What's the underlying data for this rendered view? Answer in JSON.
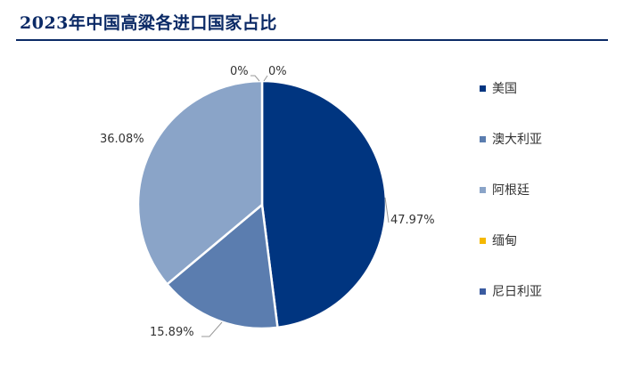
{
  "header": {
    "title": "2023年中国高粱各进口国家占比"
  },
  "chart_data": {
    "type": "pie",
    "title": "2023年中国高粱各进口国家占比",
    "slices": [
      {
        "name": "美国",
        "value": 47.97,
        "label": "47.97%",
        "color": "#003580"
      },
      {
        "name": "澳大利亚",
        "value": 15.89,
        "label": "15.89%",
        "color": "#5b7daf"
      },
      {
        "name": "阿根廷",
        "value": 36.08,
        "label": "36.08%",
        "color": "#8aa4c8"
      },
      {
        "name": "缅甸",
        "value": 0,
        "label": "0%",
        "color": "#f5b800"
      },
      {
        "name": "尼日利亚",
        "value": 0,
        "label": "0%",
        "color": "#3a5ba0"
      }
    ],
    "legend_position": "right"
  }
}
